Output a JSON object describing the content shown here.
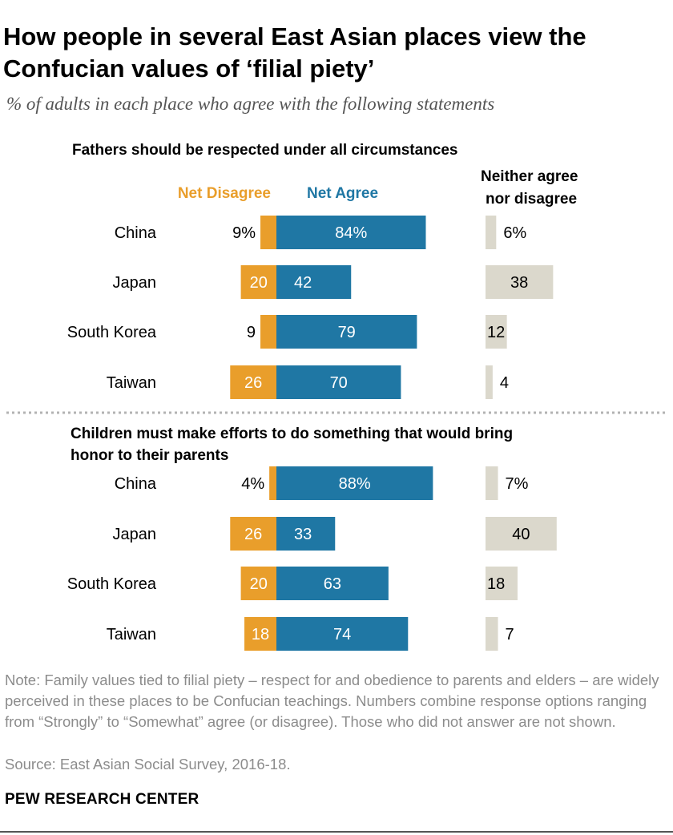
{
  "title": "How people in several East Asian places view the Confucian values of ‘filial piety’",
  "subtitle": "% of adults in each place who agree with the following statements",
  "legend": {
    "disagree": "Net Disagree",
    "agree": "Net Agree",
    "neither": "Neither agree nor disagree"
  },
  "colors": {
    "disagree": "#e99e2b",
    "agree": "#1f77a4",
    "neither": "#dbd8cc"
  },
  "chart_data": {
    "type": "bar",
    "series": [
      {
        "name": "Net Disagree"
      },
      {
        "name": "Net Agree"
      },
      {
        "name": "Neither agree nor disagree"
      }
    ],
    "panels": [
      {
        "heading": "Fathers should be respected under all circumstances",
        "rows": [
          {
            "category": "China",
            "disagree": 9,
            "agree": 84,
            "neither": 6,
            "disagree_label": "9%",
            "agree_label": "84%",
            "neither_label": "6%"
          },
          {
            "category": "Japan",
            "disagree": 20,
            "agree": 42,
            "neither": 38,
            "disagree_label": "20",
            "agree_label": "42",
            "neither_label": "38"
          },
          {
            "category": "South Korea",
            "disagree": 9,
            "agree": 79,
            "neither": 12,
            "disagree_label": "9",
            "agree_label": "79",
            "neither_label": "12"
          },
          {
            "category": "Taiwan",
            "disagree": 26,
            "agree": 70,
            "neither": 4,
            "disagree_label": "26",
            "agree_label": "70",
            "neither_label": "4"
          }
        ]
      },
      {
        "heading": "Children must make efforts to do something that would bring honor to their parents",
        "rows": [
          {
            "category": "China",
            "disagree": 4,
            "agree": 88,
            "neither": 7,
            "disagree_label": "4%",
            "agree_label": "88%",
            "neither_label": "7%"
          },
          {
            "category": "Japan",
            "disagree": 26,
            "agree": 33,
            "neither": 40,
            "disagree_label": "26",
            "agree_label": "33",
            "neither_label": "40"
          },
          {
            "category": "South Korea",
            "disagree": 20,
            "agree": 63,
            "neither": 18,
            "disagree_label": "20",
            "agree_label": "63",
            "neither_label": "18"
          },
          {
            "category": "Taiwan",
            "disagree": 18,
            "agree": 74,
            "neither": 7,
            "disagree_label": "18",
            "agree_label": "74",
            "neither_label": "7"
          }
        ]
      }
    ]
  },
  "note": "Note: Family values tied to filial piety – respect for and obedience to parents and elders – are widely perceived in these places to be Confucian teachings. Numbers combine response options ranging from “Strongly” to “Somewhat” agree (or disagree). Those who did not answer are not shown.",
  "source": "Source: East Asian Social Survey, 2016-18.",
  "brand": "PEW RESEARCH CENTER"
}
